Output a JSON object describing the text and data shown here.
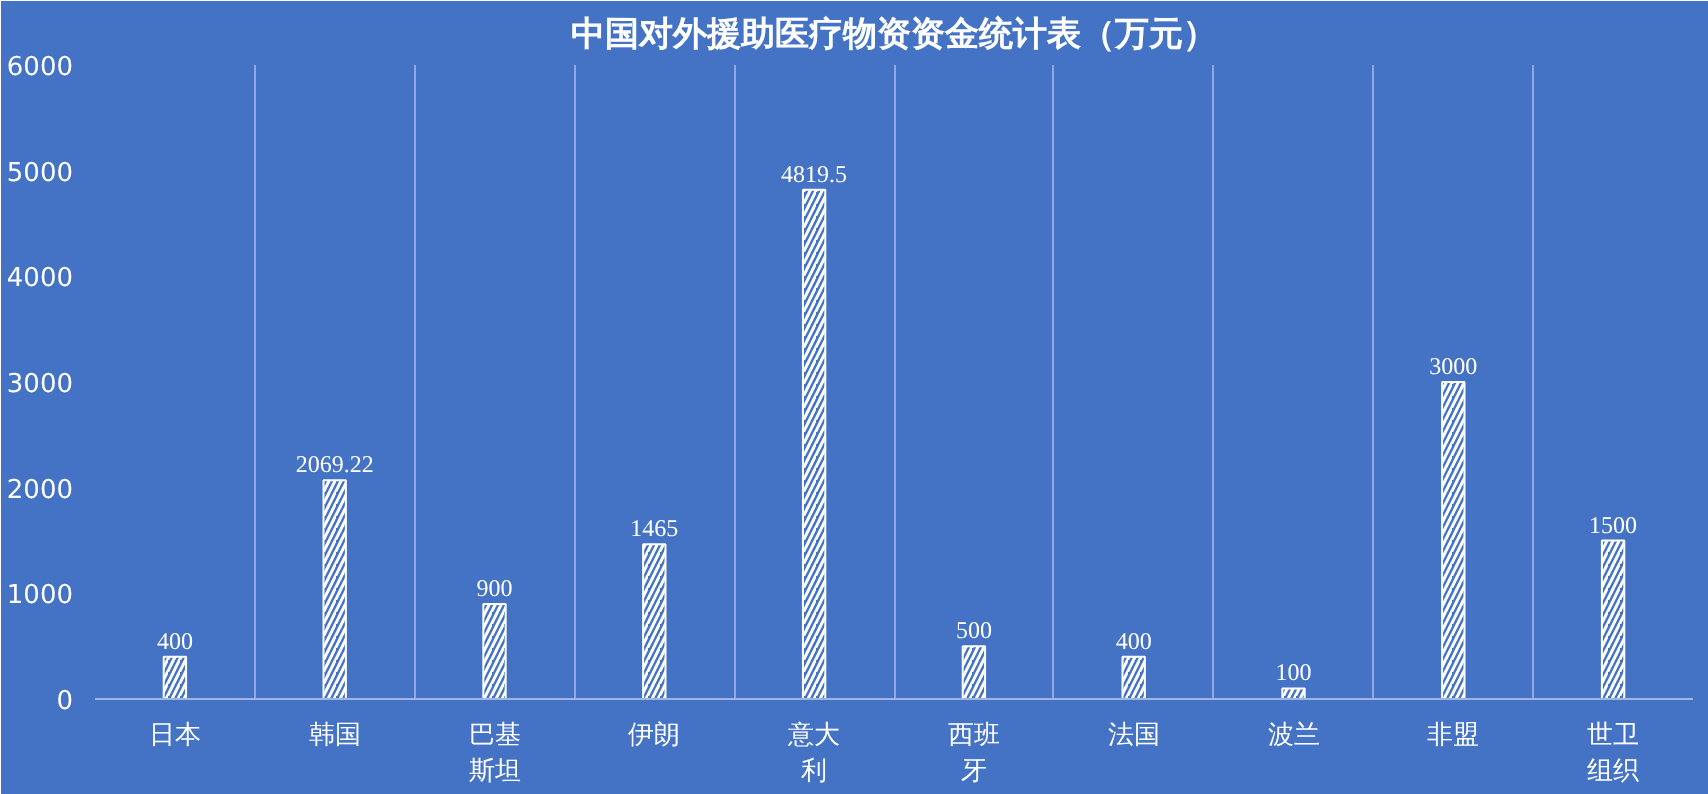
{
  "chart_data": {
    "type": "bar",
    "title": "中国对外援助医疗物资资金统计表（万元）",
    "categories": [
      "日本",
      "韩国",
      "巴基斯坦",
      "伊朗",
      "意大利",
      "西班牙",
      "法国",
      "波兰",
      "非盟",
      "世卫组织"
    ],
    "values": [
      400,
      2069.22,
      900,
      1465,
      4819.5,
      500,
      400,
      100,
      3000,
      1500
    ],
    "color": "#ffffff",
    "ylim": [
      0,
      6000
    ],
    "yticks": [
      0,
      1000,
      2000,
      3000,
      4000,
      5000,
      6000
    ],
    "grid": "x",
    "data_labels": true
  }
}
